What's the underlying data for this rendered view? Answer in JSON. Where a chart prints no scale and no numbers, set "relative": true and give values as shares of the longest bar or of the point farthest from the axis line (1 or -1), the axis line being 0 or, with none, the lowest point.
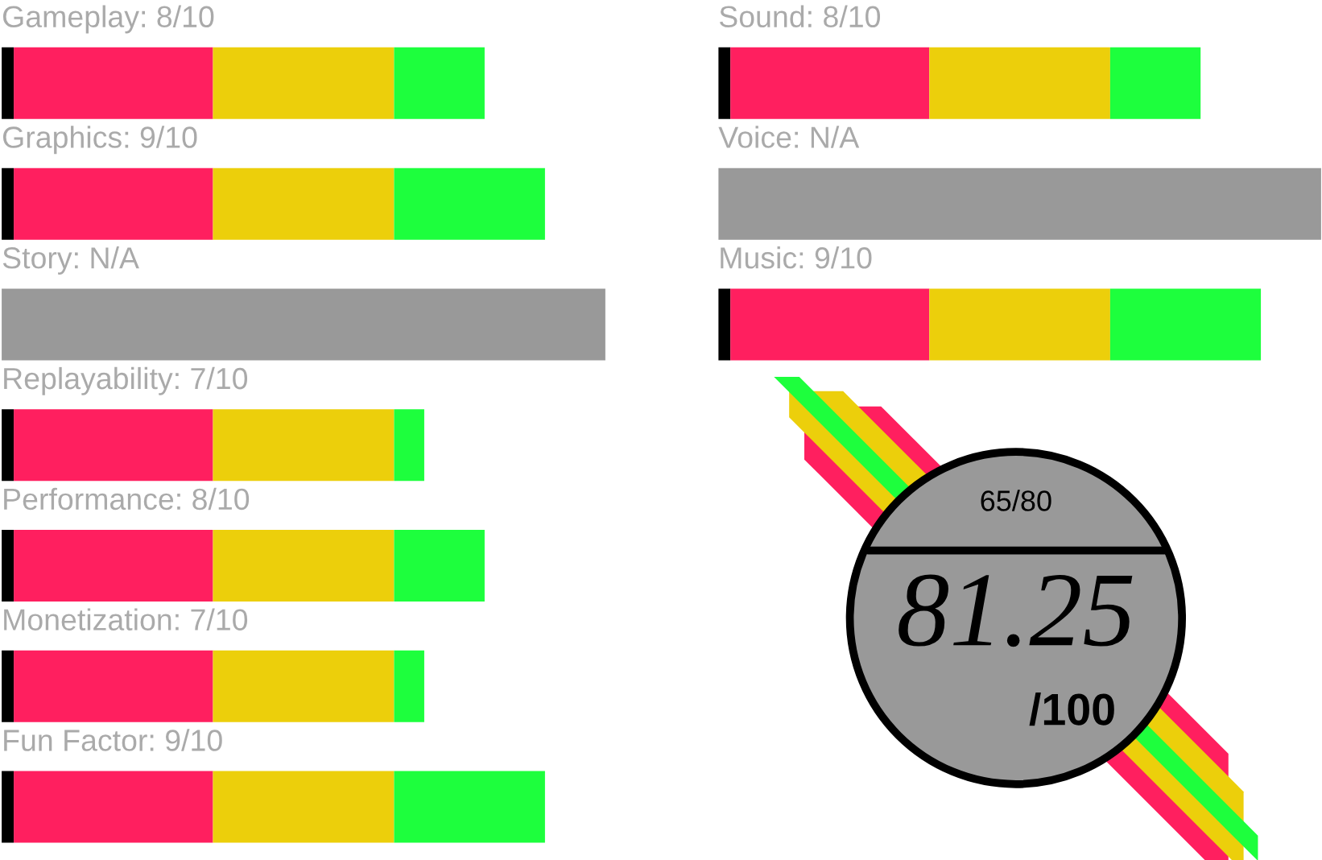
{
  "chart_data": [
    {
      "type": "bar",
      "orientation": "horizontal",
      "stacked": true,
      "relative": true,
      "categories": [
        "Gameplay: 8/10",
        "Graphics: 9/10",
        "Story: N/A",
        "Replayability: 7/10",
        "Performance: 8/10",
        "Monetization: 7/10",
        "Fun Factor: 9/10"
      ],
      "series": [
        {
          "color": "#000000",
          "values": [
            0.02,
            0.02,
            null,
            0.02,
            0.02,
            0.02,
            0.02
          ]
        },
        {
          "color": "#ff1f5f",
          "values": [
            0.33,
            0.33,
            null,
            0.33,
            0.33,
            0.33,
            0.33
          ]
        },
        {
          "color": "#eccf0b",
          "values": [
            0.3,
            0.3,
            null,
            0.3,
            0.3,
            0.3,
            0.3
          ]
        },
        {
          "color": "#1dff3d",
          "values": [
            0.15,
            0.25,
            null,
            0.05,
            0.15,
            0.05,
            0.25
          ]
        },
        {
          "color": "#999999",
          "values": [
            null,
            null,
            1,
            null,
            null,
            null,
            null
          ]
        }
      ]
    },
    {
      "type": "bar",
      "orientation": "horizontal",
      "stacked": true,
      "relative": true,
      "categories": [
        "Sound: 8/10",
        "Voice: N/A",
        "Music: 9/10"
      ],
      "series": [
        {
          "color": "#000000",
          "values": [
            0.02,
            null,
            0.02
          ]
        },
        {
          "color": "#ff1f5f",
          "values": [
            0.33,
            null,
            0.33
          ]
        },
        {
          "color": "#eccf0b",
          "values": [
            0.3,
            null,
            0.3
          ]
        },
        {
          "color": "#1dff3d",
          "values": [
            0.15,
            null,
            0.25
          ]
        },
        {
          "color": "#999999",
          "values": [
            null,
            1,
            null
          ]
        }
      ]
    },
    {
      "type": "other",
      "annotations": [
        "65/80",
        "81.25",
        "/100"
      ]
    }
  ]
}
